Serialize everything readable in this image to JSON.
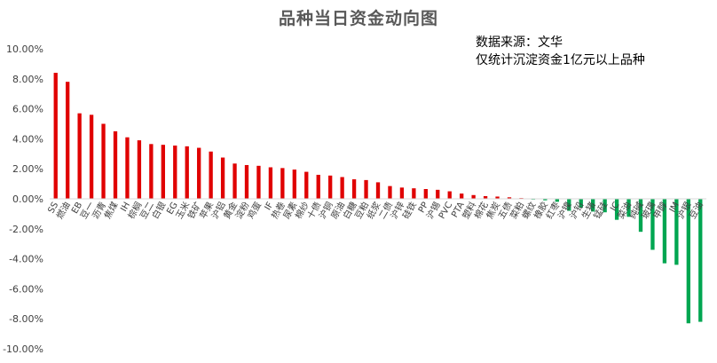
{
  "chart_data": {
    "type": "bar",
    "title": "品种当日资金动向图",
    "annotations": [
      "数据来源：文华",
      "仅统计沉淀资金1亿元以上品种"
    ],
    "ylim": [
      -10,
      10
    ],
    "y_ticks": [
      "10.00%",
      "8.00%",
      "6.00%",
      "4.00%",
      "2.00%",
      "0.00%",
      "-2.00%",
      "-4.00%",
      "-6.00%",
      "-8.00%",
      "-10.00%"
    ],
    "grid": false,
    "legend": "none",
    "colors": {
      "positive": "#e00000",
      "negative": "#00a651"
    },
    "categories": [
      "SS",
      "燃油",
      "EB",
      "豆一",
      "沥青",
      "焦煤",
      "IH",
      "棕榈",
      "豆二",
      "白银",
      "EG",
      "玉米",
      "铁矿",
      "苹果",
      "沪铝",
      "黄金",
      "淀粉",
      "鸡蛋",
      "IF",
      "热卷",
      "尿素",
      "棉纱",
      "十债",
      "沪铜",
      "原油",
      "白糖",
      "豆粕",
      "纸浆",
      "二债",
      "沪锌",
      "硅铁",
      "PP",
      "沪锡",
      "PVC",
      "PTA",
      "塑料",
      "棉花",
      "焦炭",
      "五债",
      "菜粕",
      "螺纹",
      "橡胶",
      "红枣",
      "沪镍",
      "沪铅",
      "生猪",
      "锰硅",
      "IC",
      "菜油",
      "纯碱",
      "玻璃",
      "甲醇",
      "IM",
      "沪银",
      "豆油"
    ],
    "values": [
      8.4,
      7.8,
      5.7,
      5.6,
      5.0,
      4.5,
      4.1,
      3.9,
      3.65,
      3.6,
      3.55,
      3.5,
      3.4,
      3.15,
      2.75,
      2.35,
      2.25,
      2.2,
      2.1,
      2.05,
      1.95,
      1.8,
      1.6,
      1.55,
      1.45,
      1.3,
      1.25,
      1.1,
      0.85,
      0.75,
      0.7,
      0.65,
      0.6,
      0.5,
      0.35,
      0.25,
      0.18,
      0.15,
      0.1,
      0.05,
      -0.05,
      -0.1,
      -0.2,
      -0.8,
      -0.6,
      -0.85,
      -0.9,
      -1.4,
      -1.2,
      -2.2,
      -3.4,
      -4.3,
      -4.4,
      -8.3,
      -8.2
    ]
  }
}
